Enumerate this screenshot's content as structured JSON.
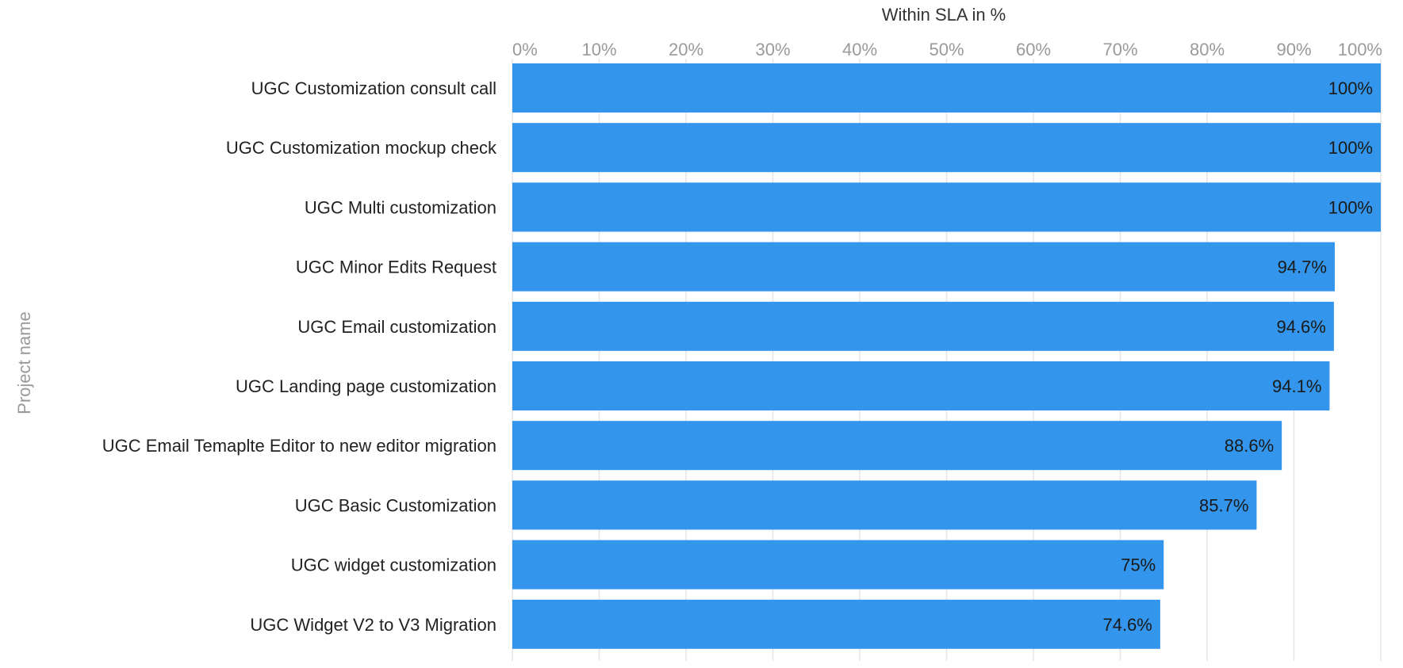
{
  "chart_data": {
    "type": "bar",
    "orientation": "horizontal",
    "xlabel": "Within SLA in %",
    "ylabel": "Project name",
    "xlim": [
      0,
      100
    ],
    "ticks": [
      "0%",
      "10%",
      "20%",
      "30%",
      "40%",
      "50%",
      "60%",
      "70%",
      "80%",
      "90%",
      "100%"
    ],
    "categories": [
      "UGC Customization consult call",
      "UGC Customization mockup check",
      "UGC Multi customization",
      "UGC Minor Edits Request",
      "UGC Email customization",
      "UGC Landing page customization",
      "UGC Email Temaplte Editor to new editor migration",
      "UGC Basic Customization",
      "UGC widget customization",
      "UGC Widget V2 to V3 Migration"
    ],
    "values": [
      100,
      100,
      100,
      94.7,
      94.6,
      94.1,
      88.6,
      85.7,
      75,
      74.6
    ],
    "value_labels": [
      "100%",
      "100%",
      "100%",
      "94.7%",
      "94.6%",
      "94.1%",
      "88.6%",
      "85.7%",
      "75%",
      "74.6%"
    ],
    "bar_color": "#3395eb",
    "grid": true,
    "x_axis_position": "top"
  }
}
